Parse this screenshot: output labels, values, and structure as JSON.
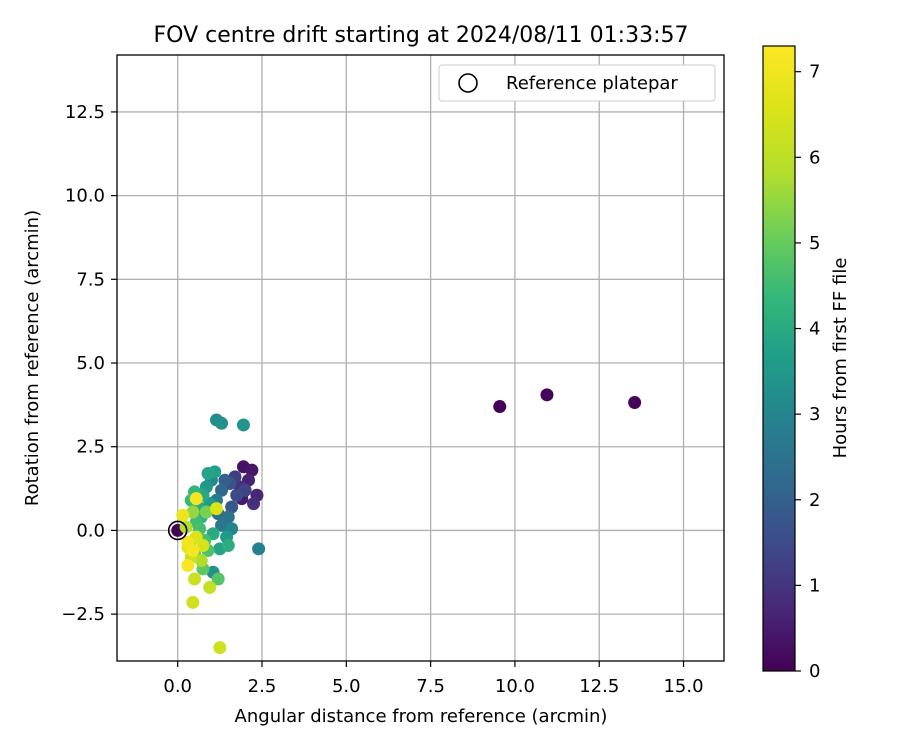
{
  "chart_data": {
    "type": "scatter",
    "title": "FOV centre drift starting at 2024/08/11 01:33:57",
    "xlabel": "Angular distance from reference (arcmin)",
    "ylabel": "Rotation from reference (arcmin)",
    "xlim": [
      -1.8,
      16.2
    ],
    "ylim": [
      -3.9,
      14.2
    ],
    "xticks": [
      0.0,
      2.5,
      5.0,
      7.5,
      10.0,
      12.5,
      15.0
    ],
    "xtick_labels": [
      "0.0",
      "2.5",
      "5.0",
      "7.5",
      "10.0",
      "12.5",
      "15.0"
    ],
    "yticks": [
      -2.5,
      0.0,
      2.5,
      5.0,
      7.5,
      10.0,
      12.5
    ],
    "ytick_labels": [
      "−2.5",
      "0.0",
      "2.5",
      "5.0",
      "7.5",
      "10.0",
      "12.5"
    ],
    "grid": true,
    "legend": {
      "placement": "upper right",
      "entries": [
        "Reference platepar"
      ]
    },
    "colorbar": {
      "label": "Hours from first FF file",
      "range": [
        0,
        7.3
      ],
      "ticks": [
        0,
        1,
        2,
        3,
        4,
        5,
        6,
        7
      ],
      "tick_labels": [
        "0",
        "1",
        "2",
        "3",
        "4",
        "5",
        "6",
        "7"
      ],
      "colormap": "viridis"
    },
    "reference_point": {
      "x": 0.0,
      "y": 0.0
    },
    "points": [
      {
        "x": 0.0,
        "y": 0.0,
        "c": 0.05
      },
      {
        "x": 9.55,
        "y": 3.7,
        "c": 0.05
      },
      {
        "x": 10.95,
        "y": 4.05,
        "c": 0.1
      },
      {
        "x": 13.55,
        "y": 3.82,
        "c": 0.1
      },
      {
        "x": 1.95,
        "y": 1.9,
        "c": 0.3
      },
      {
        "x": 2.2,
        "y": 1.8,
        "c": 0.4
      },
      {
        "x": 2.1,
        "y": 1.5,
        "c": 0.6
      },
      {
        "x": 2.35,
        "y": 1.05,
        "c": 0.7
      },
      {
        "x": 2.25,
        "y": 0.8,
        "c": 0.9
      },
      {
        "x": 1.9,
        "y": 0.95,
        "c": 0.5
      },
      {
        "x": 1.85,
        "y": 1.3,
        "c": 1.0
      },
      {
        "x": 1.7,
        "y": 1.6,
        "c": 1.2
      },
      {
        "x": 2.0,
        "y": 1.2,
        "c": 1.3
      },
      {
        "x": 1.75,
        "y": 1.05,
        "c": 1.5
      },
      {
        "x": 1.55,
        "y": 1.4,
        "c": 1.6
      },
      {
        "x": 1.6,
        "y": 0.7,
        "c": 1.8
      },
      {
        "x": 1.4,
        "y": 1.5,
        "c": 2.0
      },
      {
        "x": 1.3,
        "y": 1.2,
        "c": 2.2
      },
      {
        "x": 1.2,
        "y": 0.5,
        "c": 2.4
      },
      {
        "x": 1.5,
        "y": 0.4,
        "c": 2.5
      },
      {
        "x": 1.3,
        "y": 0.15,
        "c": 2.6
      },
      {
        "x": 1.15,
        "y": 0.9,
        "c": 2.7
      },
      {
        "x": 2.4,
        "y": -0.55,
        "c": 2.9
      },
      {
        "x": 1.6,
        "y": 0.05,
        "c": 3.0
      },
      {
        "x": 1.0,
        "y": 1.5,
        "c": 3.1
      },
      {
        "x": 1.15,
        "y": 3.3,
        "c": 3.2
      },
      {
        "x": 1.3,
        "y": 3.2,
        "c": 3.3
      },
      {
        "x": 1.95,
        "y": 3.15,
        "c": 3.4
      },
      {
        "x": 1.05,
        "y": -1.25,
        "c": 3.3
      },
      {
        "x": 0.85,
        "y": 1.3,
        "c": 3.5
      },
      {
        "x": 0.95,
        "y": 0.8,
        "c": 3.6
      },
      {
        "x": 1.1,
        "y": 1.75,
        "c": 3.7
      },
      {
        "x": 0.9,
        "y": 1.7,
        "c": 3.8
      },
      {
        "x": 0.75,
        "y": 1.05,
        "c": 3.9
      },
      {
        "x": 0.6,
        "y": 0.7,
        "c": 4.0
      },
      {
        "x": 1.45,
        "y": -0.2,
        "c": 3.6
      },
      {
        "x": 1.25,
        "y": -0.55,
        "c": 3.8
      },
      {
        "x": 1.5,
        "y": -0.45,
        "c": 4.1
      },
      {
        "x": 1.05,
        "y": -0.1,
        "c": 4.0
      },
      {
        "x": 0.7,
        "y": 0.4,
        "c": 4.2
      },
      {
        "x": 0.5,
        "y": 1.15,
        "c": 4.3
      },
      {
        "x": 0.4,
        "y": 0.9,
        "c": 4.4
      },
      {
        "x": 0.55,
        "y": 0.25,
        "c": 4.5
      },
      {
        "x": 0.65,
        "y": 0.05,
        "c": 4.6
      },
      {
        "x": 0.8,
        "y": -0.3,
        "c": 4.6
      },
      {
        "x": 0.9,
        "y": -0.6,
        "c": 4.7
      },
      {
        "x": 1.2,
        "y": -1.45,
        "c": 4.8
      },
      {
        "x": 0.75,
        "y": -1.15,
        "c": 4.9
      },
      {
        "x": 0.5,
        "y": -0.7,
        "c": 5.0
      },
      {
        "x": 0.35,
        "y": -0.45,
        "c": 5.2
      },
      {
        "x": 0.85,
        "y": 0.55,
        "c": 5.2
      },
      {
        "x": 0.45,
        "y": 0.55,
        "c": 5.5
      },
      {
        "x": 0.25,
        "y": 0.1,
        "c": 5.8
      },
      {
        "x": 0.7,
        "y": -0.9,
        "c": 5.8
      },
      {
        "x": 0.95,
        "y": -1.7,
        "c": 6.1
      },
      {
        "x": 0.5,
        "y": -1.45,
        "c": 6.2
      },
      {
        "x": 0.4,
        "y": -0.8,
        "c": 6.2
      },
      {
        "x": 0.45,
        "y": -2.15,
        "c": 6.3
      },
      {
        "x": 1.25,
        "y": -3.5,
        "c": 6.3
      },
      {
        "x": 1.15,
        "y": 0.65,
        "c": 6.6
      },
      {
        "x": 0.75,
        "y": -0.45,
        "c": 6.5
      },
      {
        "x": 0.55,
        "y": -0.2,
        "c": 6.6
      },
      {
        "x": 0.3,
        "y": -0.5,
        "c": 6.8
      },
      {
        "x": 0.15,
        "y": 0.45,
        "c": 6.9
      },
      {
        "x": 0.3,
        "y": -0.35,
        "c": 7.0
      },
      {
        "x": 0.45,
        "y": -0.6,
        "c": 7.1
      },
      {
        "x": 0.55,
        "y": 0.95,
        "c": 7.1
      },
      {
        "x": 0.3,
        "y": -1.05,
        "c": 7.2
      }
    ]
  }
}
